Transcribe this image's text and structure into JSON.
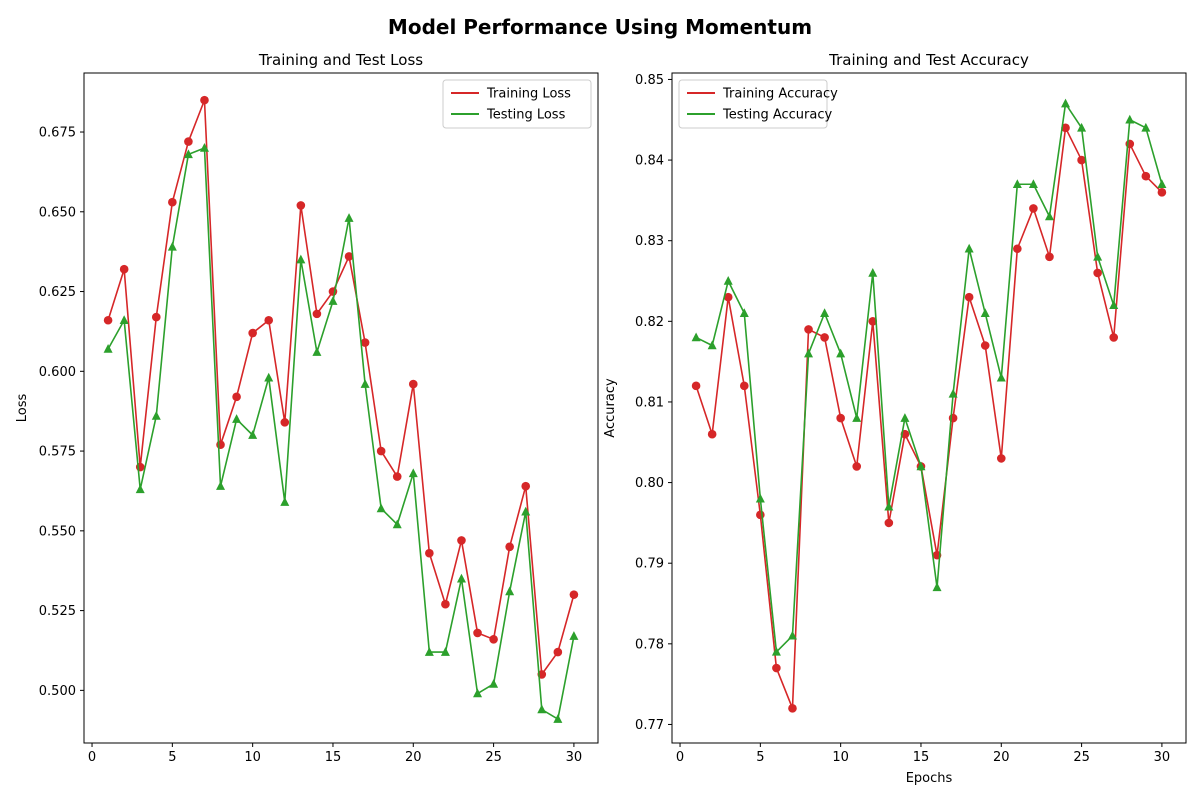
{
  "figure": {
    "title": "Model Performance Using Momentum"
  },
  "chart_data": [
    {
      "type": "line",
      "title": "Training and Test Loss",
      "xlabel": "",
      "ylabel": "Loss",
      "xlim": [
        -0.5,
        31.5
      ],
      "ylim": [
        0.4835,
        0.6935
      ],
      "x_ticks": [
        0,
        5,
        10,
        15,
        20,
        25,
        30
      ],
      "y_ticks": [
        0.5,
        0.525,
        0.55,
        0.575,
        0.6,
        0.625,
        0.65,
        0.675
      ],
      "y_tick_labels": [
        "0.500",
        "0.525",
        "0.550",
        "0.575",
        "0.600",
        "0.625",
        "0.650",
        "0.675"
      ],
      "grid": false,
      "legend_position": "top-right",
      "x": [
        1,
        2,
        3,
        4,
        5,
        6,
        7,
        8,
        9,
        10,
        11,
        12,
        13,
        14,
        15,
        16,
        17,
        18,
        19,
        20,
        21,
        22,
        23,
        24,
        25,
        26,
        27,
        28,
        29,
        30
      ],
      "series": [
        {
          "name": "Training Loss",
          "color": "#d62728",
          "marker": "circle",
          "values": [
            0.616,
            0.632,
            0.57,
            0.617,
            0.653,
            0.672,
            0.685,
            0.577,
            0.592,
            0.612,
            0.616,
            0.584,
            0.652,
            0.618,
            0.625,
            0.636,
            0.609,
            0.575,
            0.567,
            0.596,
            0.543,
            0.527,
            0.547,
            0.518,
            0.516,
            0.545,
            0.564,
            0.505,
            0.512,
            0.53
          ]
        },
        {
          "name": "Testing Loss",
          "color": "#2ca02c",
          "marker": "triangle",
          "values": [
            0.607,
            0.616,
            0.563,
            0.586,
            0.639,
            0.668,
            0.67,
            0.564,
            0.585,
            0.58,
            0.598,
            0.559,
            0.635,
            0.606,
            0.622,
            0.648,
            0.596,
            0.557,
            0.552,
            0.568,
            0.512,
            0.512,
            0.535,
            0.499,
            0.502,
            0.531,
            0.556,
            0.494,
            0.491,
            0.517
          ]
        }
      ]
    },
    {
      "type": "line",
      "title": "Training and Test Accuracy",
      "xlabel": "Epochs",
      "ylabel": "Accuracy",
      "xlim": [
        -0.5,
        31.5
      ],
      "ylim": [
        0.7677,
        0.8508
      ],
      "x_ticks": [
        0,
        5,
        10,
        15,
        20,
        25,
        30
      ],
      "y_ticks": [
        0.77,
        0.78,
        0.79,
        0.8,
        0.81,
        0.82,
        0.83,
        0.84,
        0.85
      ],
      "y_tick_labels": [
        "0.77",
        "0.78",
        "0.79",
        "0.80",
        "0.81",
        "0.82",
        "0.83",
        "0.84",
        "0.85"
      ],
      "grid": false,
      "legend_position": "top-left",
      "x": [
        1,
        2,
        3,
        4,
        5,
        6,
        7,
        8,
        9,
        10,
        11,
        12,
        13,
        14,
        15,
        16,
        17,
        18,
        19,
        20,
        21,
        22,
        23,
        24,
        25,
        26,
        27,
        28,
        29,
        30
      ],
      "series": [
        {
          "name": "Training Accuracy",
          "color": "#d62728",
          "marker": "circle",
          "values": [
            0.812,
            0.806,
            0.823,
            0.812,
            0.796,
            0.777,
            0.772,
            0.819,
            0.818,
            0.808,
            0.802,
            0.82,
            0.795,
            0.806,
            0.802,
            0.791,
            0.808,
            0.823,
            0.817,
            0.803,
            0.829,
            0.834,
            0.828,
            0.844,
            0.84,
            0.826,
            0.818,
            0.842,
            0.838,
            0.836
          ]
        },
        {
          "name": "Testing Accuracy",
          "color": "#2ca02c",
          "marker": "triangle",
          "values": [
            0.818,
            0.817,
            0.825,
            0.821,
            0.798,
            0.779,
            0.781,
            0.816,
            0.821,
            0.816,
            0.808,
            0.826,
            0.797,
            0.808,
            0.802,
            0.787,
            0.811,
            0.829,
            0.821,
            0.813,
            0.837,
            0.837,
            0.833,
            0.847,
            0.844,
            0.828,
            0.822,
            0.845,
            0.844,
            0.837
          ]
        }
      ]
    }
  ]
}
